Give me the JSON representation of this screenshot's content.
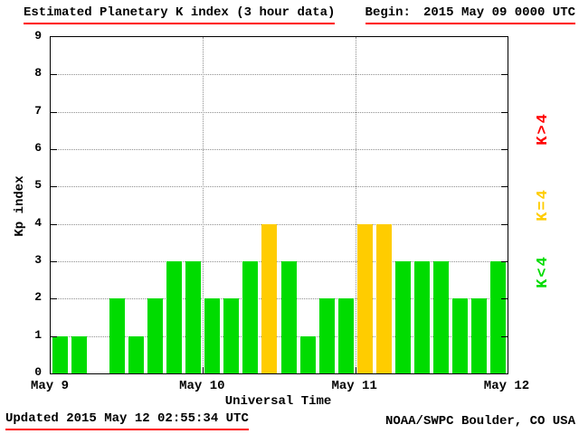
{
  "header": {
    "title": "Estimated Planetary K index (3 hour data)",
    "begin_label": "Begin:",
    "begin_value": "2015 May 09 0000 UTC"
  },
  "chart_data": {
    "type": "bar",
    "title": "Estimated Planetary K index (3 hour data)",
    "ylabel": "Kp index",
    "xlabel": "Universal Time",
    "ylim": [
      0,
      9
    ],
    "y_ticks": [
      0,
      1,
      2,
      3,
      4,
      5,
      6,
      7,
      8,
      9
    ],
    "x_tick_labels": [
      "May 9",
      "May 10",
      "May 11",
      "May 12"
    ],
    "bars_per_day": 8,
    "values": [
      1,
      1,
      0,
      2,
      1,
      2,
      3,
      3,
      2,
      2,
      3,
      4,
      3,
      1,
      2,
      2,
      4,
      4,
      3,
      3,
      3,
      2,
      2,
      3
    ],
    "colors": {
      "k_lt_4": "#00dc00",
      "k_eq_4": "#ffcc00",
      "k_gt_4": "#ff0000"
    },
    "legend": [
      {
        "label": "K>4",
        "color": "#ff0000"
      },
      {
        "label": "K=4",
        "color": "#ffcc00"
      },
      {
        "label": "K<4",
        "color": "#00dc00"
      }
    ],
    "grid": "dotted horizontal at each Kp integer, dotted vertical at day boundaries",
    "legend_position": "right, rotated"
  },
  "footer": {
    "updated": "Updated 2015 May 12 02:55:34 UTC",
    "source": "NOAA/SWPC Boulder, CO USA"
  }
}
